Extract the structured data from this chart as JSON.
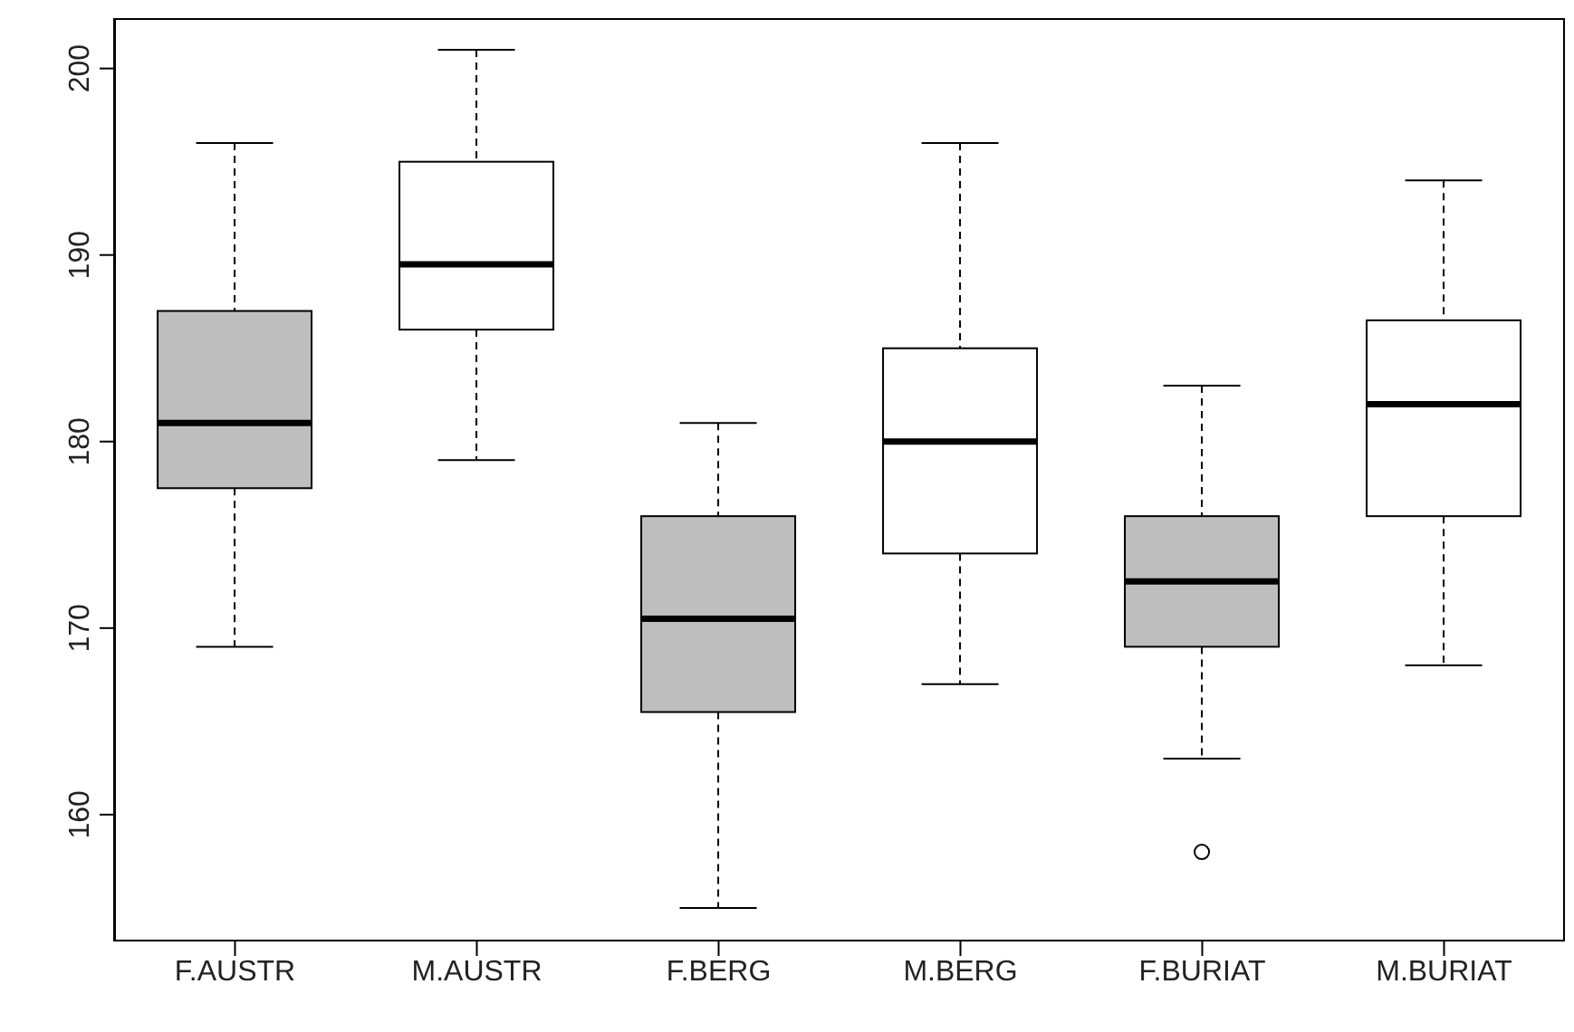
{
  "chart_data": {
    "type": "box",
    "categories": [
      "F.AUSTR",
      "M.AUSTR",
      "F.BERG",
      "M.BERG",
      "F.BURIAT",
      "M.BURIAT"
    ],
    "boxes": [
      {
        "low": 169,
        "q1": 177.5,
        "median": 181,
        "q3": 187,
        "high": 196
      },
      {
        "low": 179,
        "q1": 186,
        "median": 189.5,
        "q3": 195,
        "high": 201
      },
      {
        "low": 155,
        "q1": 165.5,
        "median": 170.5,
        "q3": 176,
        "high": 181
      },
      {
        "low": 167,
        "q1": 174,
        "median": 180,
        "q3": 185,
        "high": 196
      },
      {
        "low": 163,
        "q1": 169,
        "median": 172.5,
        "q3": 176,
        "high": 183,
        "outliers": [
          158
        ]
      },
      {
        "low": 168,
        "q1": 176,
        "median": 182,
        "q3": 186.5,
        "high": 194
      }
    ],
    "colors": [
      "#bebebe",
      "#ffffff",
      "#bebebe",
      "#ffffff",
      "#bebebe",
      "#ffffff"
    ],
    "ylim": [
      153.2,
      202.7
    ],
    "yticks": [
      160,
      170,
      180,
      190,
      200
    ],
    "grid": false,
    "legend": false
  }
}
